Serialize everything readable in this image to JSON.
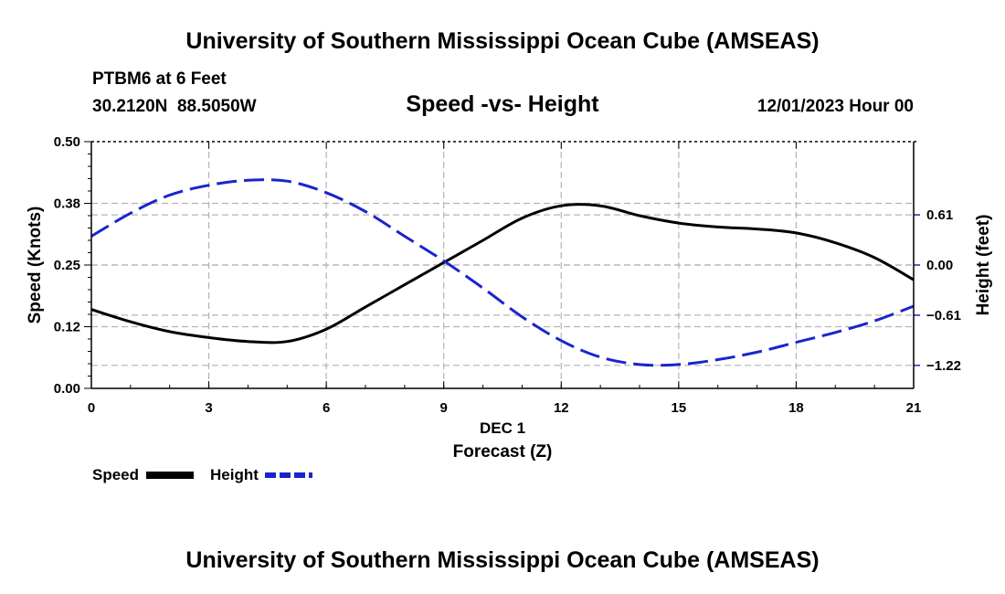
{
  "header": {
    "title": "University of Southern Mississippi Ocean Cube (AMSEAS)",
    "station": "PTBM6 at 6 Feet",
    "coordinates": "30.2120N  88.5050W",
    "subtitle": "Speed -vs- Height",
    "datetime": "12/01/2023 Hour 00"
  },
  "footer": {
    "title": "University of Southern Mississippi Ocean Cube (AMSEAS)"
  },
  "chart_data": {
    "type": "line",
    "title": "Speed -vs- Height",
    "xlabel": "Forecast (Z)",
    "xlabel_day": "DEC 1",
    "ylabel": "Speed (Knots)",
    "y2label": "Height (feet)",
    "xlim": [
      0,
      21
    ],
    "ylim": [
      0,
      0.5
    ],
    "y2lim": [
      -1.5,
      1.5
    ],
    "x_ticks": [
      0,
      3,
      6,
      9,
      12,
      15,
      18,
      21
    ],
    "x_tick_labels": [
      "0",
      "3",
      "6",
      "9",
      "12",
      "15",
      "18",
      "21"
    ],
    "y_ticks": [
      0,
      0.125,
      0.25,
      0.375,
      0.5
    ],
    "y_tick_labels": [
      "0.00",
      "0.12",
      "0.25",
      "0.38",
      "0.50"
    ],
    "y2_ticks": [
      -1.22,
      -0.61,
      0,
      0.61
    ],
    "y2_tick_labels": [
      "-1.22",
      "-0.61",
      "0.00",
      "0.61"
    ],
    "grid": true,
    "legend_position": "bottom-left",
    "series": [
      {
        "name": "Speed",
        "axis": "left",
        "color": "#000000",
        "dash": "solid",
        "x": [
          0,
          1,
          2,
          3,
          4,
          5,
          6,
          7,
          8,
          9,
          10,
          11,
          12,
          13,
          14,
          15,
          16,
          17,
          18,
          19,
          20,
          21
        ],
        "values": [
          0.16,
          0.135,
          0.115,
          0.103,
          0.095,
          0.095,
          0.12,
          0.165,
          0.21,
          0.255,
          0.3,
          0.345,
          0.37,
          0.37,
          0.35,
          0.335,
          0.327,
          0.323,
          0.315,
          0.295,
          0.265,
          0.22
        ]
      },
      {
        "name": "Height",
        "axis": "right",
        "color": "#1a24cc",
        "dash": "dashed",
        "x": [
          0,
          1,
          2,
          3,
          4,
          5,
          6,
          7,
          8,
          9,
          10,
          11,
          12,
          13,
          14,
          15,
          16,
          17,
          18,
          19,
          20,
          21
        ],
        "values": [
          0.35,
          0.63,
          0.85,
          0.97,
          1.03,
          1.02,
          0.88,
          0.65,
          0.35,
          0.05,
          -0.28,
          -0.63,
          -0.92,
          -1.12,
          -1.21,
          -1.21,
          -1.15,
          -1.06,
          -0.94,
          -0.82,
          -0.68,
          -0.5
        ]
      }
    ]
  }
}
